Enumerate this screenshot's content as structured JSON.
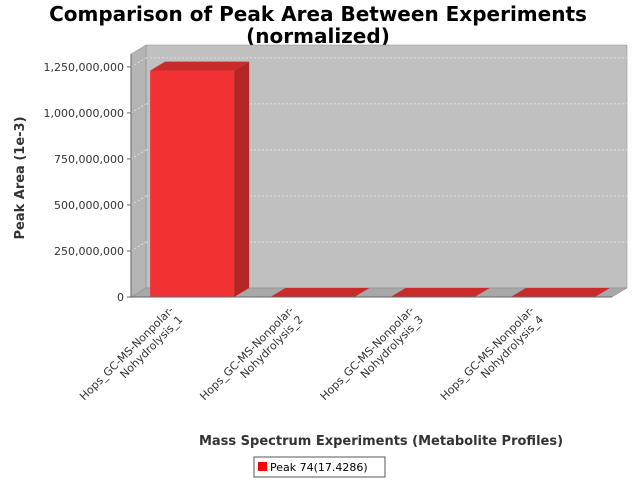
{
  "colors": {
    "bar_front": "#f23232",
    "bar_side": "#b52525",
    "bar_top": "#c92a2a",
    "plot_back": "#c0c0c0",
    "plot_floor": "#a8a8a8",
    "gridline": "#e8e8e8"
  },
  "chart_data": {
    "type": "bar",
    "title_lines": [
      "Comparison of Peak Area Between Experiments",
      "(normalized)"
    ],
    "xlabel": "Mass Spectrum Experiments (Metabolite Profiles)",
    "ylabel": "Peak Area (1e-3)",
    "categories": [
      [
        "Hops_GC-MS-Nonpolar-",
        "Nohydrolysis_1"
      ],
      [
        "Hops_GC-MS-Nonpolar-",
        "Nohydrolysis_2"
      ],
      [
        "Hops_GC-MS-Nonpolar-",
        "Nohydrolysis_3"
      ],
      [
        "Hops_GC-MS-Nonpolar-",
        "Nohydrolysis_4"
      ]
    ],
    "series": [
      {
        "name": "Peak 74(17.4286)",
        "values": [
          1230000000,
          0,
          0,
          0
        ]
      }
    ],
    "yticks": [
      0,
      250000000,
      500000000,
      750000000,
      1000000000,
      1250000000
    ],
    "ytick_labels": [
      "0",
      "250,000,000",
      "500,000,000",
      "750,000,000",
      "1,000,000,000",
      "1,250,000,000"
    ],
    "ylim": [
      0,
      1320000000
    ],
    "grid": true,
    "legend_position": "bottom-center",
    "style": "3d"
  }
}
